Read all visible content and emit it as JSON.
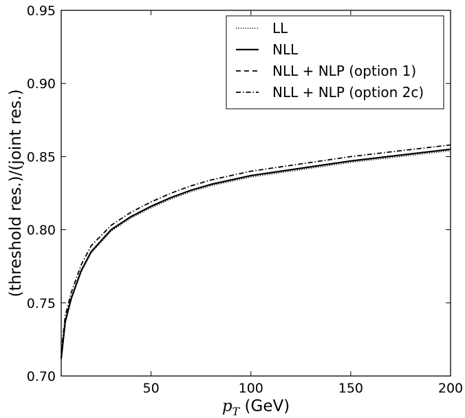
{
  "chart_data": {
    "type": "line",
    "title": "",
    "xlabel": {
      "var": "p",
      "sub": "T",
      "rest": " (GeV)"
    },
    "ylabel": "(threshold res.)/(joint res.)",
    "xlim": [
      5,
      200
    ],
    "ylim": [
      0.7,
      0.95
    ],
    "grid": false,
    "legend_position": "top-right",
    "x_ticks": [
      {
        "value": 50,
        "label": "50"
      },
      {
        "value": 100,
        "label": "100"
      },
      {
        "value": 150,
        "label": "150"
      },
      {
        "value": 200,
        "label": "200"
      }
    ],
    "y_ticks": [
      {
        "value": 0.7,
        "label": "0.70"
      },
      {
        "value": 0.75,
        "label": "0.75"
      },
      {
        "value": 0.8,
        "label": "0.80"
      },
      {
        "value": 0.85,
        "label": "0.85"
      },
      {
        "value": 0.9,
        "label": "0.90"
      },
      {
        "value": 0.95,
        "label": "0.95"
      }
    ],
    "x": [
      5,
      7,
      10,
      15,
      20,
      30,
      40,
      50,
      60,
      70,
      80,
      90,
      100,
      125,
      150,
      175,
      200
    ],
    "series": [
      {
        "name": "LL",
        "style": "dotted",
        "color": "#000000",
        "values": [
          0.711,
          0.736,
          0.752,
          0.771,
          0.784,
          0.799,
          0.808,
          0.815,
          0.821,
          0.826,
          0.83,
          0.833,
          0.836,
          0.841,
          0.846,
          0.85,
          0.854
        ]
      },
      {
        "name": "NLL",
        "style": "solid",
        "color": "#000000",
        "values": [
          0.712,
          0.737,
          0.753,
          0.772,
          0.785,
          0.8,
          0.809,
          0.816,
          0.822,
          0.827,
          0.831,
          0.834,
          0.837,
          0.842,
          0.847,
          0.851,
          0.855
        ]
      },
      {
        "name": "NLL + NLP (option 1)",
        "style": "dashed",
        "color": "#000000",
        "values": [
          0.712,
          0.737,
          0.753,
          0.772,
          0.785,
          0.8,
          0.809,
          0.816,
          0.822,
          0.827,
          0.831,
          0.834,
          0.837,
          0.842,
          0.847,
          0.851,
          0.855
        ]
      },
      {
        "name": "NLL + NLP (option 2c)",
        "style": "dashdot",
        "color": "#000000",
        "values": [
          0.716,
          0.741,
          0.757,
          0.776,
          0.789,
          0.803,
          0.812,
          0.819,
          0.825,
          0.83,
          0.834,
          0.837,
          0.84,
          0.845,
          0.85,
          0.854,
          0.858
        ]
      }
    ]
  }
}
